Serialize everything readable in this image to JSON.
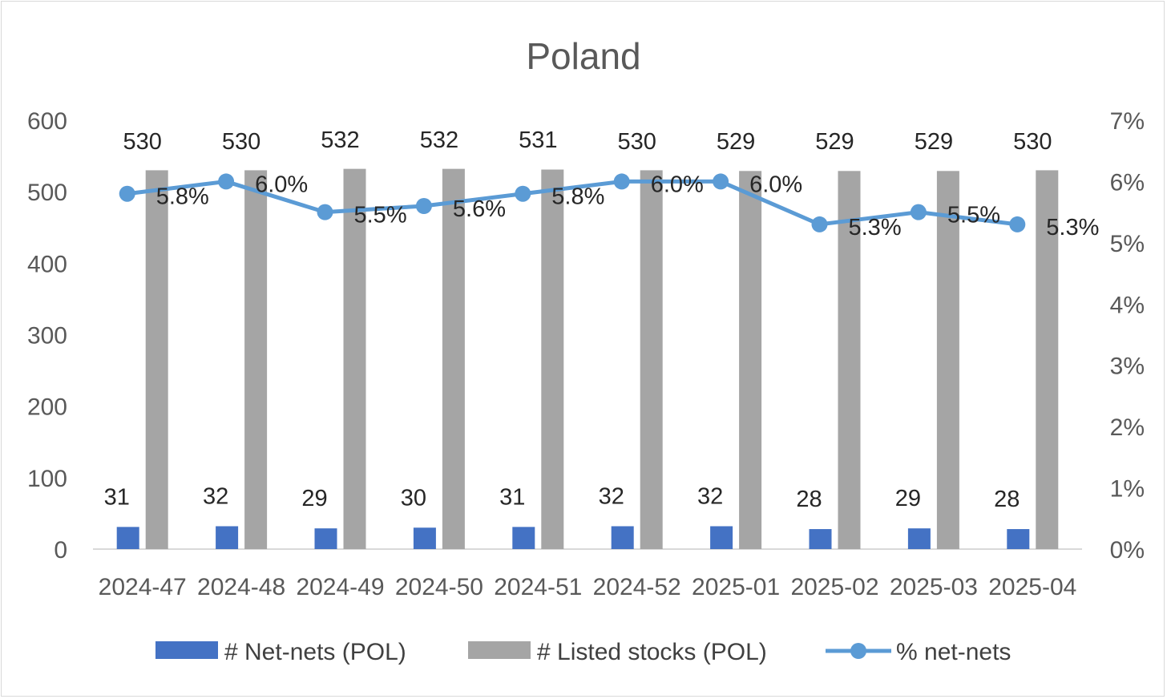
{
  "chart_data": {
    "type": "bar",
    "title": "Poland",
    "categories": [
      "2024-47",
      "2024-48",
      "2024-49",
      "2024-50",
      "2024-51",
      "2024-52",
      "2025-01",
      "2025-02",
      "2025-03",
      "2025-04"
    ],
    "series": [
      {
        "name": "# Net-nets (POL)",
        "kind": "bar",
        "axis": "left",
        "color": "#4472c4",
        "values": [
          31,
          32,
          29,
          30,
          31,
          32,
          32,
          28,
          29,
          28
        ],
        "labels": [
          "31",
          "32",
          "29",
          "30",
          "31",
          "32",
          "32",
          "28",
          "29",
          "28"
        ]
      },
      {
        "name": "# Listed stocks (POL)",
        "kind": "bar",
        "axis": "left",
        "color": "#a5a5a5",
        "values": [
          530,
          530,
          532,
          532,
          531,
          530,
          529,
          529,
          529,
          530
        ],
        "labels": [
          "530",
          "530",
          "532",
          "532",
          "531",
          "530",
          "529",
          "529",
          "529",
          "530"
        ]
      },
      {
        "name": "% net-nets",
        "kind": "line",
        "axis": "right",
        "color": "#5b9bd5",
        "values": [
          5.8,
          6.0,
          5.5,
          5.6,
          5.8,
          6.0,
          6.0,
          5.3,
          5.5,
          5.3
        ],
        "labels": [
          "5.8%",
          "6.0%",
          "5.5%",
          "5.6%",
          "5.8%",
          "6.0%",
          "6.0%",
          "5.3%",
          "5.5%",
          "5.3%"
        ]
      }
    ],
    "y_left": {
      "ylim": [
        0,
        600
      ],
      "ticks": [
        "0",
        "100",
        "200",
        "300",
        "400",
        "500",
        "600"
      ]
    },
    "y_right": {
      "ylim": [
        0,
        7
      ],
      "ticks": [
        "0%",
        "1%",
        "2%",
        "3%",
        "4%",
        "5%",
        "6%",
        "7%"
      ]
    },
    "legend_position": "bottom",
    "grid": false
  }
}
